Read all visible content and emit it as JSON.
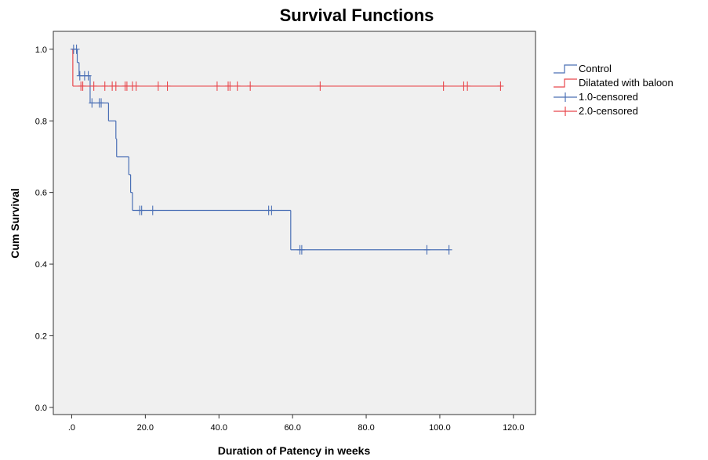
{
  "chart_data": {
    "type": "line",
    "title": "Survival Functions",
    "xlabel": "Duration of Patency in weeks",
    "ylabel": "Cum Survival",
    "xlim": [
      -5,
      126
    ],
    "ylim": [
      -0.02,
      1.05
    ],
    "x_ticks": [
      {
        "value": 0,
        "label": ".0"
      },
      {
        "value": 20,
        "label": "20.0"
      },
      {
        "value": 40,
        "label": "40.0"
      },
      {
        "value": 60,
        "label": "60.0"
      },
      {
        "value": 80,
        "label": "80.0"
      },
      {
        "value": 100,
        "label": "100.0"
      },
      {
        "value": 120,
        "label": "120.0"
      }
    ],
    "y_ticks": [
      {
        "value": 0.0,
        "label": "0.0"
      },
      {
        "value": 0.2,
        "label": "0.2"
      },
      {
        "value": 0.4,
        "label": "0.4"
      },
      {
        "value": 0.6,
        "label": "0.6"
      },
      {
        "value": 0.8,
        "label": "0.8"
      },
      {
        "value": 1.0,
        "label": "1.0"
      }
    ],
    "grid": false,
    "legend_position": "right",
    "plot_background": "#f0f0f0",
    "series": [
      {
        "name": "Control",
        "color": "#4a6fb5",
        "steps": [
          {
            "x": 0,
            "y": 1.0
          },
          {
            "x": 1.5,
            "y": 0.963
          },
          {
            "x": 2.0,
            "y": 0.926
          },
          {
            "x": 5.0,
            "y": 0.85
          },
          {
            "x": 10.0,
            "y": 0.8
          },
          {
            "x": 12.0,
            "y": 0.75
          },
          {
            "x": 12.2,
            "y": 0.7
          },
          {
            "x": 15.5,
            "y": 0.65
          },
          {
            "x": 16.0,
            "y": 0.6
          },
          {
            "x": 16.5,
            "y": 0.55
          },
          {
            "x": 59.5,
            "y": 0.44
          }
        ],
        "x_end": 102.5
      },
      {
        "name": "Dilatated with baloon",
        "color": "#e8474c",
        "steps": [
          {
            "x": 0,
            "y": 1.0
          },
          {
            "x": 0.3,
            "y": 0.897
          }
        ],
        "x_end": 116.5
      }
    ],
    "censored": [
      {
        "name": "1.0-censored",
        "color": "#4a6fb5",
        "points": [
          {
            "x": 0.5,
            "y": 1.0
          },
          {
            "x": 1.3,
            "y": 1.0
          },
          {
            "x": 2.2,
            "y": 0.926
          },
          {
            "x": 3.5,
            "y": 0.926
          },
          {
            "x": 4.5,
            "y": 0.926
          },
          {
            "x": 5.5,
            "y": 0.85
          },
          {
            "x": 7.5,
            "y": 0.85
          },
          {
            "x": 8.0,
            "y": 0.85
          },
          {
            "x": 18.5,
            "y": 0.55
          },
          {
            "x": 19.0,
            "y": 0.55
          },
          {
            "x": 22.0,
            "y": 0.55
          },
          {
            "x": 53.5,
            "y": 0.55
          },
          {
            "x": 54.3,
            "y": 0.55
          },
          {
            "x": 62.0,
            "y": 0.44
          },
          {
            "x": 62.5,
            "y": 0.44
          },
          {
            "x": 96.5,
            "y": 0.44
          },
          {
            "x": 102.5,
            "y": 0.44
          }
        ]
      },
      {
        "name": "2.0-censored",
        "color": "#e8474c",
        "points": [
          {
            "x": 2.5,
            "y": 0.897
          },
          {
            "x": 3.0,
            "y": 0.897
          },
          {
            "x": 6.0,
            "y": 0.897
          },
          {
            "x": 9.0,
            "y": 0.897
          },
          {
            "x": 11.0,
            "y": 0.897
          },
          {
            "x": 12.0,
            "y": 0.897
          },
          {
            "x": 14.5,
            "y": 0.897
          },
          {
            "x": 15.0,
            "y": 0.897
          },
          {
            "x": 16.5,
            "y": 0.897
          },
          {
            "x": 17.5,
            "y": 0.897
          },
          {
            "x": 23.5,
            "y": 0.897
          },
          {
            "x": 26.0,
            "y": 0.897
          },
          {
            "x": 39.5,
            "y": 0.897
          },
          {
            "x": 42.5,
            "y": 0.897
          },
          {
            "x": 43.0,
            "y": 0.897
          },
          {
            "x": 45.0,
            "y": 0.897
          },
          {
            "x": 48.5,
            "y": 0.897
          },
          {
            "x": 67.5,
            "y": 0.897
          },
          {
            "x": 101.0,
            "y": 0.897
          },
          {
            "x": 106.5,
            "y": 0.897
          },
          {
            "x": 107.5,
            "y": 0.897
          },
          {
            "x": 116.5,
            "y": 0.897
          }
        ]
      }
    ]
  }
}
